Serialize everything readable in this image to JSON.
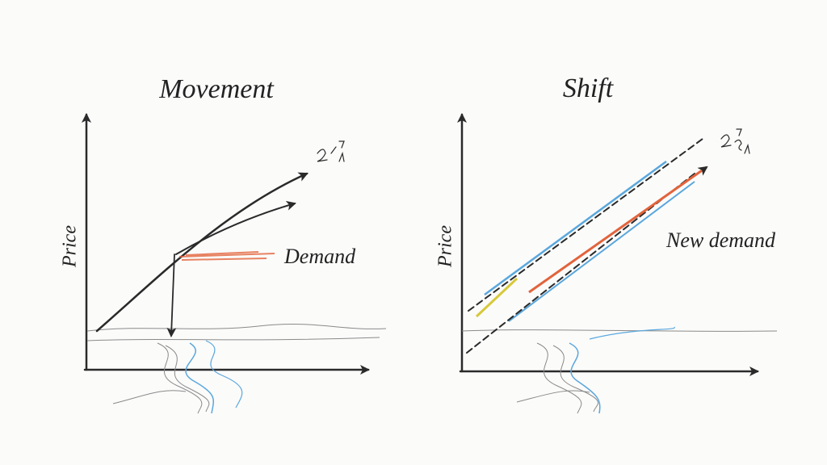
{
  "panels": [
    {
      "title": "Movement",
      "y_axis_label": "Price",
      "curve_label": "Demand"
    },
    {
      "title": "Shift",
      "y_axis_label": "Price",
      "curve_label": "New demand"
    }
  ]
}
